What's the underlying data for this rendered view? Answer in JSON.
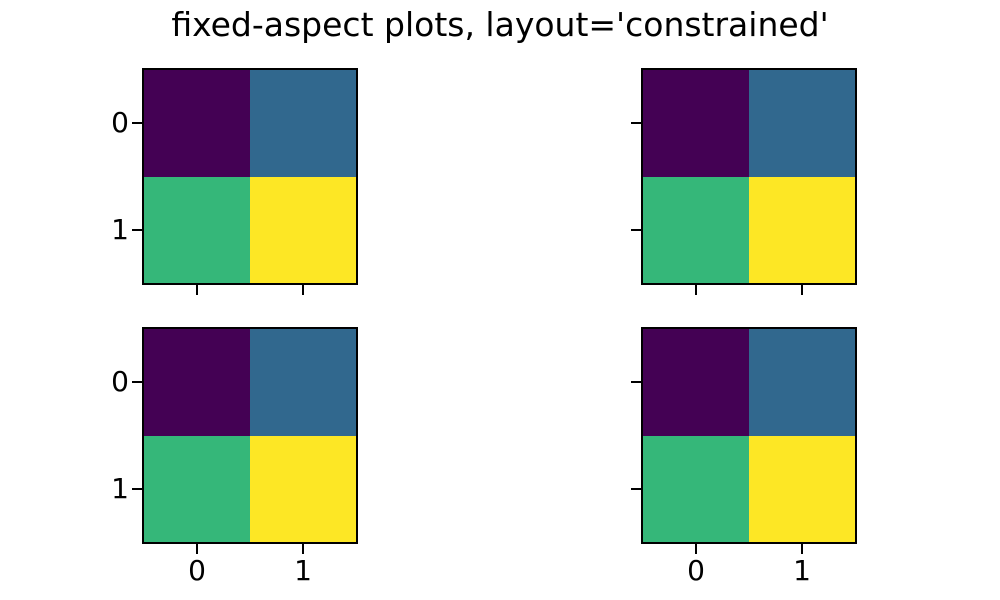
{
  "chart_data": {
    "type": "heatmap",
    "figure_title": "fixed-aspect plots, layout='constrained'",
    "colormap": "viridis",
    "grid": {
      "rows": 2,
      "cols": 2
    },
    "matrix": [
      [
        0,
        1
      ],
      [
        2,
        3
      ]
    ],
    "xlim": [
      -0.5,
      1.5
    ],
    "ylim": [
      1.5,
      -0.5
    ],
    "xticks": [
      "0",
      "1"
    ],
    "yticks": [
      "0",
      "1"
    ],
    "aspect": "equal",
    "value_colors": [
      "#440154",
      "#31688e",
      "#35b779",
      "#fde725"
    ],
    "subplots": [
      {
        "position": "top-left",
        "show_xticklabels": false,
        "show_yticklabels": true
      },
      {
        "position": "top-right",
        "show_xticklabels": false,
        "show_yticklabels": false
      },
      {
        "position": "bottom-left",
        "show_xticklabels": true,
        "show_yticklabels": true
      },
      {
        "position": "bottom-right",
        "show_xticklabels": true,
        "show_yticklabels": false
      }
    ]
  },
  "cell_colors": [
    [
      "#440154",
      "#31688e"
    ],
    [
      "#35b779",
      "#fde725"
    ]
  ],
  "tick_labels": {
    "x": [
      "0",
      "1"
    ],
    "y": [
      "0",
      "1"
    ]
  },
  "colors": {
    "spine": "#000000",
    "text": "#000000",
    "background": "#ffffff"
  }
}
